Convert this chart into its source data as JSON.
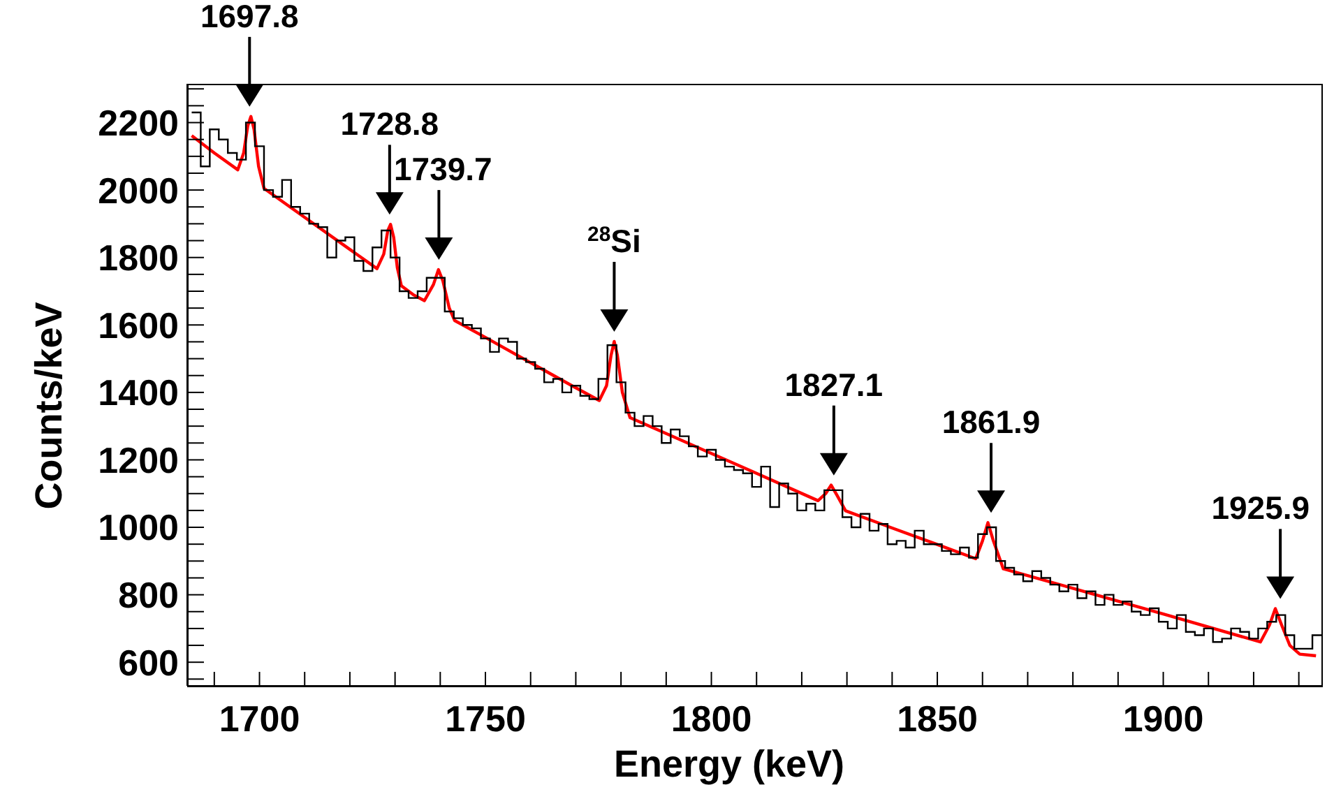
{
  "chart_data": {
    "type": "histogram",
    "xlabel": "Energy (keV)",
    "ylabel": "Counts/keV",
    "xlim": [
      1684,
      1935
    ],
    "ylim": [
      530,
      2315
    ],
    "xticks": [
      {
        "value": 1690,
        "label": null
      },
      1700,
      {
        "value": 1710,
        "label": null
      },
      {
        "value": 1720,
        "label": null
      },
      {
        "value": 1730,
        "label": null
      },
      {
        "value": 1740,
        "label": null
      },
      1750,
      {
        "value": 1760,
        "label": null
      },
      {
        "value": 1770,
        "label": null
      },
      {
        "value": 1780,
        "label": null
      },
      {
        "value": 1790,
        "label": null
      },
      1800,
      {
        "value": 1810,
        "label": null
      },
      {
        "value": 1820,
        "label": null
      },
      {
        "value": 1830,
        "label": null
      },
      {
        "value": 1840,
        "label": null
      },
      1850,
      {
        "value": 1860,
        "label": null
      },
      {
        "value": 1870,
        "label": null
      },
      {
        "value": 1880,
        "label": null
      },
      {
        "value": 1890,
        "label": null
      },
      1900,
      {
        "value": 1910,
        "label": null
      },
      {
        "value": 1920,
        "label": null
      },
      {
        "value": 1930,
        "label": null
      }
    ],
    "yticks": [
      {
        "value": 550,
        "label": null
      },
      600,
      {
        "value": 650,
        "label": null
      },
      {
        "value": 700,
        "label": null
      },
      {
        "value": 750,
        "label": null
      },
      800,
      {
        "value": 850,
        "label": null
      },
      {
        "value": 900,
        "label": null
      },
      {
        "value": 950,
        "label": null
      },
      1000,
      {
        "value": 1050,
        "label": null
      },
      {
        "value": 1100,
        "label": null
      },
      {
        "value": 1150,
        "label": null
      },
      1200,
      {
        "value": 1250,
        "label": null
      },
      {
        "value": 1300,
        "label": null
      },
      {
        "value": 1350,
        "label": null
      },
      1400,
      {
        "value": 1450,
        "label": null
      },
      {
        "value": 1500,
        "label": null
      },
      {
        "value": 1550,
        "label": null
      },
      1600,
      {
        "value": 1650,
        "label": null
      },
      {
        "value": 1700,
        "label": null
      },
      {
        "value": 1750,
        "label": null
      },
      1800,
      {
        "value": 1850,
        "label": null
      },
      {
        "value": 1900,
        "label": null
      },
      {
        "value": 1950,
        "label": null
      },
      2000,
      {
        "value": 2050,
        "label": null
      },
      {
        "value": 2100,
        "label": null
      },
      {
        "value": 2150,
        "label": null
      },
      2200,
      {
        "value": 2250,
        "label": null
      },
      {
        "value": 2300,
        "label": null
      }
    ],
    "bins": [
      1685,
      1687,
      1689,
      1691,
      1693,
      1695,
      1697,
      1699,
      1701,
      1703,
      1705,
      1707,
      1709,
      1711,
      1713,
      1715,
      1717,
      1719,
      1721,
      1723,
      1725,
      1727,
      1729,
      1731,
      1733,
      1735,
      1737,
      1739,
      1741,
      1743,
      1745,
      1747,
      1749,
      1751,
      1753,
      1755,
      1757,
      1759,
      1761,
      1763,
      1765,
      1767,
      1769,
      1771,
      1773,
      1775,
      1777,
      1779,
      1781,
      1783,
      1785,
      1787,
      1789,
      1791,
      1793,
      1795,
      1797,
      1799,
      1801,
      1803,
      1805,
      1807,
      1809,
      1811,
      1813,
      1815,
      1817,
      1819,
      1821,
      1823,
      1825,
      1827,
      1829,
      1831,
      1833,
      1835,
      1837,
      1839,
      1841,
      1843,
      1845,
      1847,
      1849,
      1851,
      1853,
      1855,
      1857,
      1859,
      1861,
      1863,
      1865,
      1867,
      1869,
      1871,
      1873,
      1875,
      1877,
      1879,
      1881,
      1883,
      1885,
      1887,
      1889,
      1891,
      1893,
      1895,
      1897,
      1899,
      1901,
      1903,
      1905,
      1907,
      1909,
      1911,
      1913,
      1915,
      1917,
      1919,
      1921,
      1923,
      1925,
      1927,
      1929,
      1931,
      1933,
      1935
    ],
    "series": [
      {
        "type": "line",
        "color": "#ff0000",
        "x": [
          1685,
          1690,
          1695.2,
          1696.5,
          1697.4,
          1698.1,
          1698.8,
          1699.8,
          1701,
          1710,
          1720,
          1726,
          1727.5,
          1728.4,
          1729,
          1729.7,
          1730.5,
          1731.4,
          1734,
          1736.5,
          1738.5,
          1739.6,
          1740.6,
          1742,
          1743.2,
          1750,
          1760,
          1769,
          1775.2,
          1776.8,
          1777.8,
          1778.5,
          1779.2,
          1780.3,
          1782,
          1790,
          1800,
          1810,
          1823.6,
          1825.3,
          1826.5,
          1827.8,
          1829.7,
          1840,
          1850,
          1858.5,
          1860,
          1861.2,
          1862.4,
          1864.6,
          1880,
          1900,
          1921.5,
          1923.5,
          1924.8,
          1926.2,
          1928,
          1930.2,
          1933.8
        ],
        "values": [
          2161,
          2110,
          2060,
          2110,
          2190,
          2218,
          2180,
          2070,
          2005,
          1919,
          1824,
          1767,
          1810,
          1880,
          1898,
          1860,
          1770,
          1716,
          1690,
          1672,
          1720,
          1764,
          1730,
          1650,
          1613,
          1563,
          1488,
          1421,
          1376,
          1420,
          1510,
          1551,
          1510,
          1400,
          1325,
          1278,
          1219,
          1160,
          1079,
          1100,
          1125,
          1095,
          1049,
          998,
          949,
          907,
          960,
          1014,
          960,
          877,
          819,
          743,
          660,
          710,
          759,
          710,
          650,
          624,
          619
        ]
      },
      {
        "color": "#000000",
        "values": [
          2230,
          2070,
          2180,
          2150,
          2110,
          2090,
          2200,
          2130,
          2000,
          1980,
          2030,
          1950,
          1930,
          1900,
          1890,
          1800,
          1850,
          1860,
          1790,
          1760,
          1830,
          1880,
          1800,
          1700,
          1680,
          1700,
          1740,
          1740,
          1640,
          1620,
          1600,
          1590,
          1560,
          1520,
          1560,
          1550,
          1500,
          1490,
          1470,
          1430,
          1440,
          1400,
          1420,
          1390,
          1380,
          1440,
          1540,
          1430,
          1340,
          1300,
          1330,
          1300,
          1250,
          1290,
          1270,
          1240,
          1210,
          1230,
          1200,
          1180,
          1170,
          1160,
          1120,
          1180,
          1060,
          1130,
          1100,
          1050,
          1070,
          1050,
          1110,
          1110,
          1030,
          1000,
          1040,
          990,
          1010,
          950,
          960,
          940,
          990,
          950,
          950,
          930,
          920,
          940,
          910,
          980,
          1000,
          900,
          880,
          860,
          840,
          870,
          850,
          830,
          810,
          830,
          790,
          810,
          770,
          800,
          770,
          780,
          750,
          740,
          760,
          720,
          700,
          740,
          690,
          680,
          700,
          660,
          670,
          700,
          690,
          670,
          700,
          720,
          740,
          680,
          640,
          640,
          680
        ]
      }
    ],
    "annotations": [
      {
        "text": "1697.8",
        "x": 1697.8,
        "y": 2218
      },
      {
        "text": "1728.8",
        "x": 1728.8,
        "y": 1898
      },
      {
        "text": "1739.7",
        "x": 1739.7,
        "y": 1764
      },
      {
        "text": "$^{28}$Si",
        "x": 1778.5,
        "y": 1551
      },
      {
        "text": "1827.1",
        "x": 1827.1,
        "y": 1125
      },
      {
        "text": "1861.9",
        "x": 1861.9,
        "y": 1014
      },
      {
        "text": "1925.9",
        "x": 1925.9,
        "y": 759
      }
    ]
  }
}
